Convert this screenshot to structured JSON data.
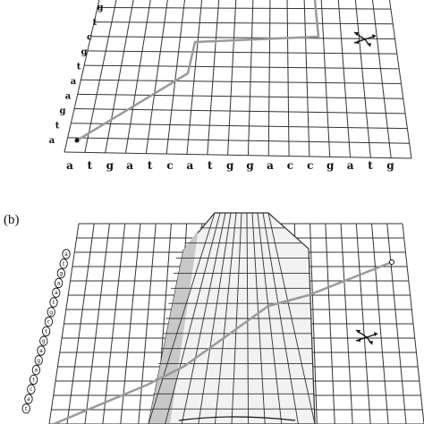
{
  "panel_b_label": "(b)",
  "panel_a": {
    "x_sequence": [
      "a",
      "t",
      "g",
      "a",
      "t",
      "c",
      "a",
      "t",
      "g",
      "g",
      "a",
      "c",
      "c",
      "g",
      "a",
      "t",
      "g"
    ],
    "y_sequence": [
      "a",
      "t",
      "g",
      "a",
      "a",
      "t",
      "g",
      "c",
      "t",
      "g"
    ]
  },
  "panel_b": {
    "y_sequence": [
      "a",
      "t",
      "g",
      "a",
      "a",
      "t",
      "g",
      "c",
      "t",
      "g",
      "a",
      "g",
      "a",
      "t",
      "c",
      "a",
      "t"
    ]
  },
  "icons": [
    "direction-arrows-icon"
  ],
  "colors": {
    "grid": "#333333",
    "path": "#9a9a9a",
    "ridge": "#eeeeee"
  }
}
